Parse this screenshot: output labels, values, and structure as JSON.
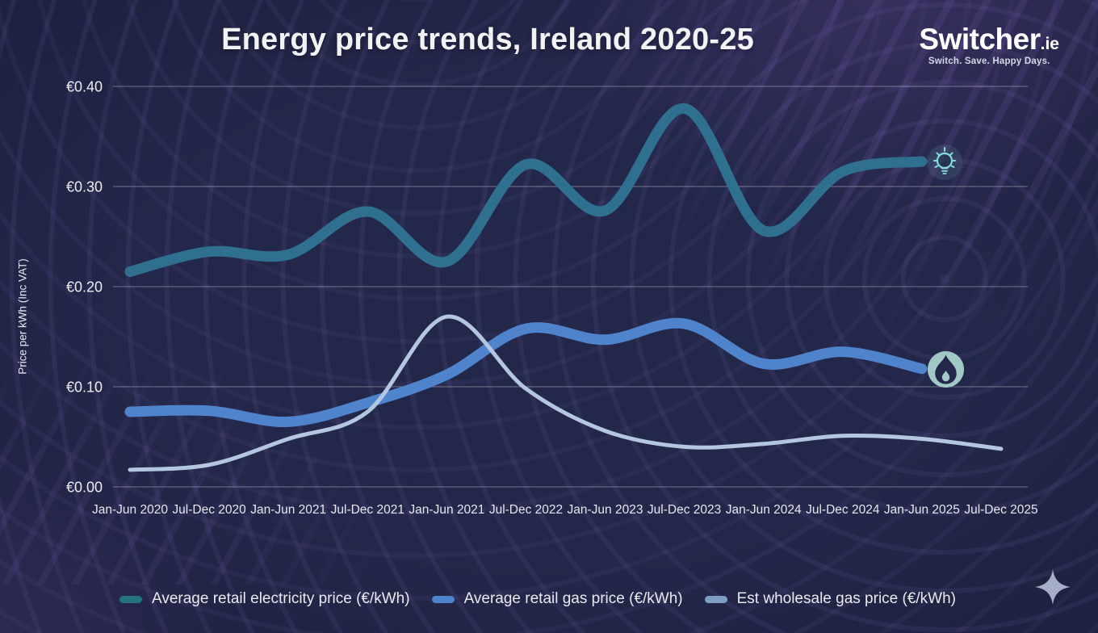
{
  "header": {
    "title": "Energy price trends, Ireland 2020-25"
  },
  "logo": {
    "brand": "Switcher",
    "tld": ".ie",
    "tagline": "Switch. Save. Happy Days."
  },
  "chart_data": {
    "type": "line",
    "title": "Energy price trends, Ireland 2020-25",
    "xlabel": "",
    "ylabel": "Price per kWh (Inc VAT)",
    "ylim": [
      0,
      0.4
    ],
    "grid": true,
    "legend_position": "bottom",
    "y_ticks": [
      {
        "label": "€0.40",
        "value": 0.4
      },
      {
        "label": "€0.30",
        "value": 0.3
      },
      {
        "label": "€0.20",
        "value": 0.2
      },
      {
        "label": "€0.10",
        "value": 0.1
      },
      {
        "label": "€0.00",
        "value": 0.0
      }
    ],
    "categories": [
      "Jan-Jun 2020",
      "Jul-Dec 2020",
      "Jan-Jun 2021",
      "Jul-Dec 2021",
      "Jan-Jun 2021",
      "Jul-Dec 2022",
      "Jan-Jun 2023",
      "Jul-Dec 2023",
      "Jan-Jun 2024",
      "Jul-Dec 2024",
      "Jan-Jun 2025",
      "Jul-Dec 2025"
    ],
    "series": [
      {
        "name": "Average retail electricity price (€/kWh)",
        "color": "#2f7090",
        "legend_color": "#24737f",
        "line_width": 13,
        "values": [
          0.215,
          0.235,
          0.232,
          0.275,
          0.225,
          0.322,
          0.276,
          0.378,
          0.256,
          0.315,
          0.325
        ]
      },
      {
        "name": "Average retail gas price (€/kWh)",
        "color": "#4f83cb",
        "legend_color": "#4f83cb",
        "line_width": 13,
        "values": [
          0.075,
          0.076,
          0.065,
          0.084,
          0.112,
          0.158,
          0.147,
          0.163,
          0.123,
          0.135,
          0.118
        ]
      },
      {
        "name": "Est wholesale gas price (€/kWh)",
        "color": "#b3c7e0",
        "legend_color": "#7e9ec3",
        "line_width": 5,
        "values": [
          0.017,
          0.022,
          0.048,
          0.075,
          0.17,
          0.098,
          0.056,
          0.04,
          0.043,
          0.051,
          0.048,
          0.038
        ]
      }
    ],
    "annotations": [
      "lightbulb-icon marks end of electricity line",
      "flame-icon marks end of retail gas line"
    ]
  }
}
